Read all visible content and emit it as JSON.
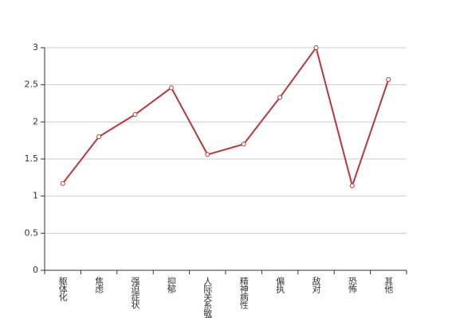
{
  "chart_data": {
    "type": "line",
    "categories": [
      "躯体化",
      "焦虑",
      "强迫症状",
      "抑郁",
      "人际关系敏感",
      "精神病性",
      "偏执",
      "敌对",
      "恐怖",
      "其他"
    ],
    "values": [
      1.17,
      1.8,
      2.1,
      2.46,
      1.56,
      1.7,
      2.33,
      3.0,
      1.14,
      2.57
    ],
    "color": "#b8373a",
    "ylim": [
      0,
      3
    ],
    "yticks": [
      0,
      0.5,
      1,
      1.5,
      2,
      2.5,
      3
    ],
    "grid": true
  }
}
